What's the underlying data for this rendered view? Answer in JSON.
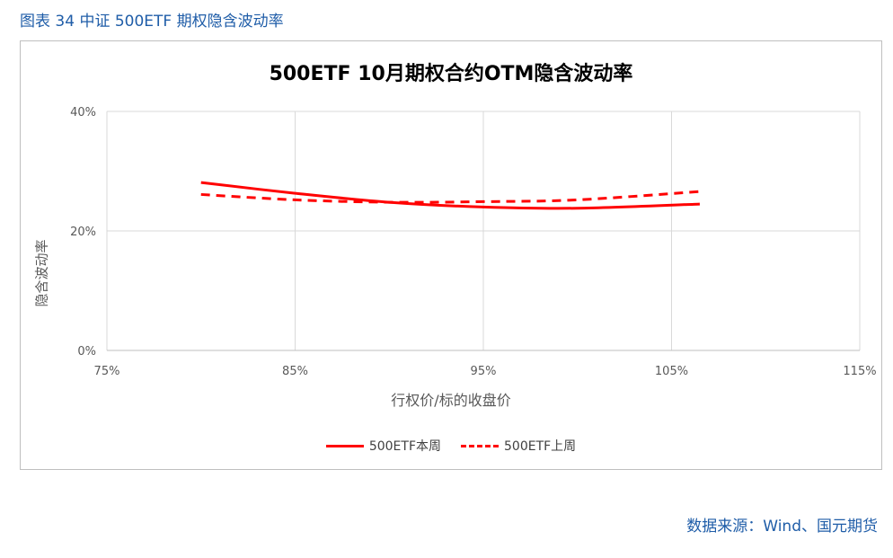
{
  "caption": "图表 34 中证 500ETF 期权隐含波动率",
  "source": "数据来源：Wind、国元期货",
  "chart_data": {
    "type": "line",
    "title": "500ETF 10月期权合约OTM隐含波动率",
    "xlabel": "行权价/标的收盘价",
    "ylabel": "隐含波动率",
    "x_ticks": [
      "75%",
      "85%",
      "95%",
      "105%",
      "115%"
    ],
    "y_ticks": [
      "0%",
      "20%",
      "40%"
    ],
    "xlim": [
      75,
      115
    ],
    "ylim": [
      0,
      40
    ],
    "grid": true,
    "legend_position": "bottom",
    "series": [
      {
        "name": "500ETF本周",
        "style": "solid",
        "color": "#ff0000",
        "x": [
          80,
          85,
          90,
          95,
          100,
          106.5
        ],
        "y": [
          28.1,
          26.3,
          24.8,
          24.0,
          23.8,
          24.5
        ]
      },
      {
        "name": "500ETF上周",
        "style": "dashed",
        "color": "#ff0000",
        "x": [
          80,
          85,
          90,
          95,
          100,
          106.5
        ],
        "y": [
          26.1,
          25.2,
          24.8,
          24.9,
          25.2,
          26.6
        ]
      }
    ]
  }
}
